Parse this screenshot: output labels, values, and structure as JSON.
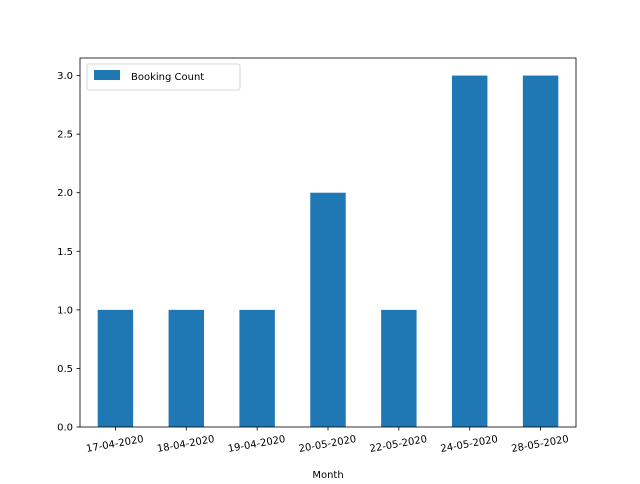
{
  "chart_data": {
    "type": "bar",
    "title": "",
    "xlabel": "Month",
    "ylabel": "",
    "categories": [
      "17-04-2020",
      "18-04-2020",
      "19-04-2020",
      "20-05-2020",
      "22-05-2020",
      "24-05-2020",
      "28-05-2020"
    ],
    "series": [
      {
        "name": "Booking Count",
        "values": [
          1,
          1,
          1,
          2,
          1,
          3,
          3
        ],
        "color": "#1f77b4"
      }
    ],
    "ylim": [
      0,
      3.15
    ],
    "yticks": [
      "0.0",
      "0.5",
      "1.0",
      "1.5",
      "2.0",
      "2.5",
      "3.0"
    ],
    "grid": false,
    "legend_position": "top-left"
  }
}
